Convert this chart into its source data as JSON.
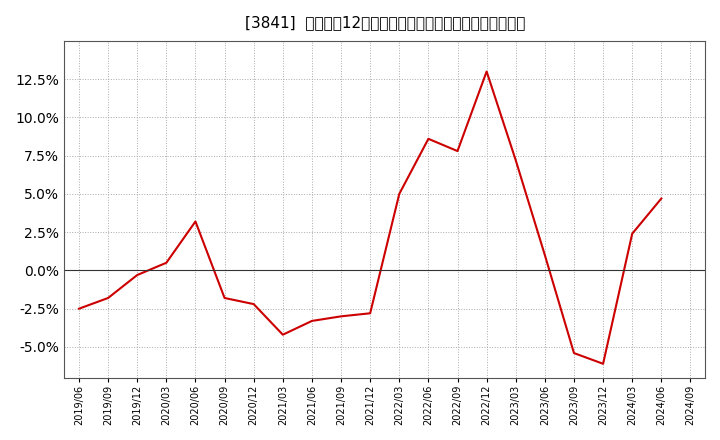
{
  "title": "[3841]  売上高の12か月移動合計の対前年同期増減率の推移",
  "line_color": "#cc0000",
  "background_color": "#ffffff",
  "plot_background_color": "#ffffff",
  "grid_color": "#aaaaaa",
  "ylim": [
    -0.07,
    0.15
  ],
  "yticks": [
    -0.05,
    -0.025,
    0.0,
    0.025,
    0.05,
    0.075,
    0.1,
    0.125
  ],
  "dates": [
    "2019/06",
    "2019/09",
    "2019/12",
    "2020/03",
    "2020/06",
    "2020/09",
    "2020/12",
    "2021/03",
    "2021/06",
    "2021/09",
    "2021/12",
    "2022/03",
    "2022/06",
    "2022/09",
    "2022/12",
    "2023/03",
    "2023/06",
    "2023/09",
    "2023/12",
    "2024/03",
    "2024/06",
    "2024/09"
  ],
  "values": [
    -0.025,
    -0.018,
    -0.003,
    0.005,
    0.032,
    -0.018,
    -0.022,
    -0.042,
    -0.033,
    -0.03,
    -0.028,
    0.05,
    0.086,
    0.078,
    0.13,
    0.072,
    0.01,
    -0.054,
    -0.061,
    0.024,
    0.047,
    null
  ]
}
